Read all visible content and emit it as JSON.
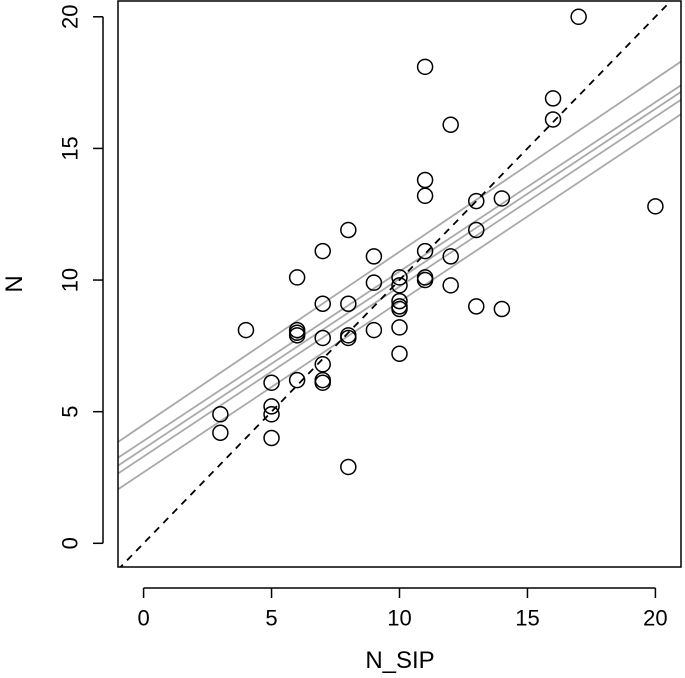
{
  "chart_data": {
    "type": "scatter",
    "xlabel": "N_SIP",
    "ylabel": "N",
    "xlim": [
      -1,
      21
    ],
    "ylim": [
      -0.9,
      20.6
    ],
    "x_ticks": [
      0,
      5,
      10,
      15,
      20
    ],
    "y_ticks": [
      0,
      5,
      10,
      15,
      20
    ],
    "x_tick_labels": [
      "0",
      "5",
      "10",
      "15",
      "20"
    ],
    "y_tick_labels": [
      "0",
      "5",
      "10",
      "15",
      "20"
    ],
    "grid": false,
    "points": [
      {
        "x": 3,
        "y": 4.9
      },
      {
        "x": 3,
        "y": 4.2
      },
      {
        "x": 4,
        "y": 8.1
      },
      {
        "x": 5,
        "y": 6.1
      },
      {
        "x": 5,
        "y": 5.2
      },
      {
        "x": 5,
        "y": 4.9
      },
      {
        "x": 5,
        "y": 4.0
      },
      {
        "x": 6,
        "y": 10.1
      },
      {
        "x": 6,
        "y": 8.1
      },
      {
        "x": 6,
        "y": 8.0
      },
      {
        "x": 6,
        "y": 7.9
      },
      {
        "x": 6,
        "y": 6.2
      },
      {
        "x": 7,
        "y": 11.1
      },
      {
        "x": 7,
        "y": 9.1
      },
      {
        "x": 7,
        "y": 7.8
      },
      {
        "x": 7,
        "y": 6.8
      },
      {
        "x": 7,
        "y": 6.1
      },
      {
        "x": 7,
        "y": 6.2
      },
      {
        "x": 8,
        "y": 11.9
      },
      {
        "x": 8,
        "y": 9.1
      },
      {
        "x": 8,
        "y": 7.9
      },
      {
        "x": 8,
        "y": 7.8
      },
      {
        "x": 8,
        "y": 2.9
      },
      {
        "x": 9,
        "y": 10.9
      },
      {
        "x": 9,
        "y": 9.9
      },
      {
        "x": 9,
        "y": 8.1
      },
      {
        "x": 10,
        "y": 10.1
      },
      {
        "x": 10,
        "y": 9.8
      },
      {
        "x": 10,
        "y": 9.2
      },
      {
        "x": 10,
        "y": 9.0
      },
      {
        "x": 10,
        "y": 8.9
      },
      {
        "x": 10,
        "y": 8.2
      },
      {
        "x": 10,
        "y": 7.2
      },
      {
        "x": 11,
        "y": 18.1
      },
      {
        "x": 11,
        "y": 13.8
      },
      {
        "x": 11,
        "y": 13.2
      },
      {
        "x": 11,
        "y": 11.1
      },
      {
        "x": 11,
        "y": 10.1
      },
      {
        "x": 11,
        "y": 10.0
      },
      {
        "x": 12,
        "y": 15.9
      },
      {
        "x": 12,
        "y": 10.9
      },
      {
        "x": 12,
        "y": 9.8
      },
      {
        "x": 13,
        "y": 13.0
      },
      {
        "x": 13,
        "y": 11.9
      },
      {
        "x": 13,
        "y": 9.0
      },
      {
        "x": 14,
        "y": 13.1
      },
      {
        "x": 14,
        "y": 8.9
      },
      {
        "x": 16,
        "y": 16.9
      },
      {
        "x": 16,
        "y": 16.1
      },
      {
        "x": 17,
        "y": 20.0
      },
      {
        "x": 20,
        "y": 12.8
      }
    ],
    "reference_line": {
      "style": "dashed",
      "color": "#000000",
      "slope": 1,
      "intercept": 0
    },
    "fit_lines": {
      "color": "#a9a9a9",
      "lines": [
        {
          "role": "fit",
          "x": [
            -1,
            21
          ],
          "y": [
            2.95,
            17.15
          ]
        },
        {
          "role": "ci-upper",
          "x": [
            -1,
            21
          ],
          "y": [
            3.25,
            17.4
          ]
        },
        {
          "role": "ci-lower",
          "x": [
            -1,
            21
          ],
          "y": [
            2.65,
            16.85
          ]
        },
        {
          "role": "pi-upper",
          "x": [
            -1,
            21
          ],
          "y": [
            3.85,
            18.3
          ]
        },
        {
          "role": "pi-lower",
          "x": [
            -1,
            21
          ],
          "y": [
            2.05,
            16.3
          ]
        }
      ]
    },
    "point_style": {
      "marker": "open-circle",
      "color": "#000000"
    }
  }
}
